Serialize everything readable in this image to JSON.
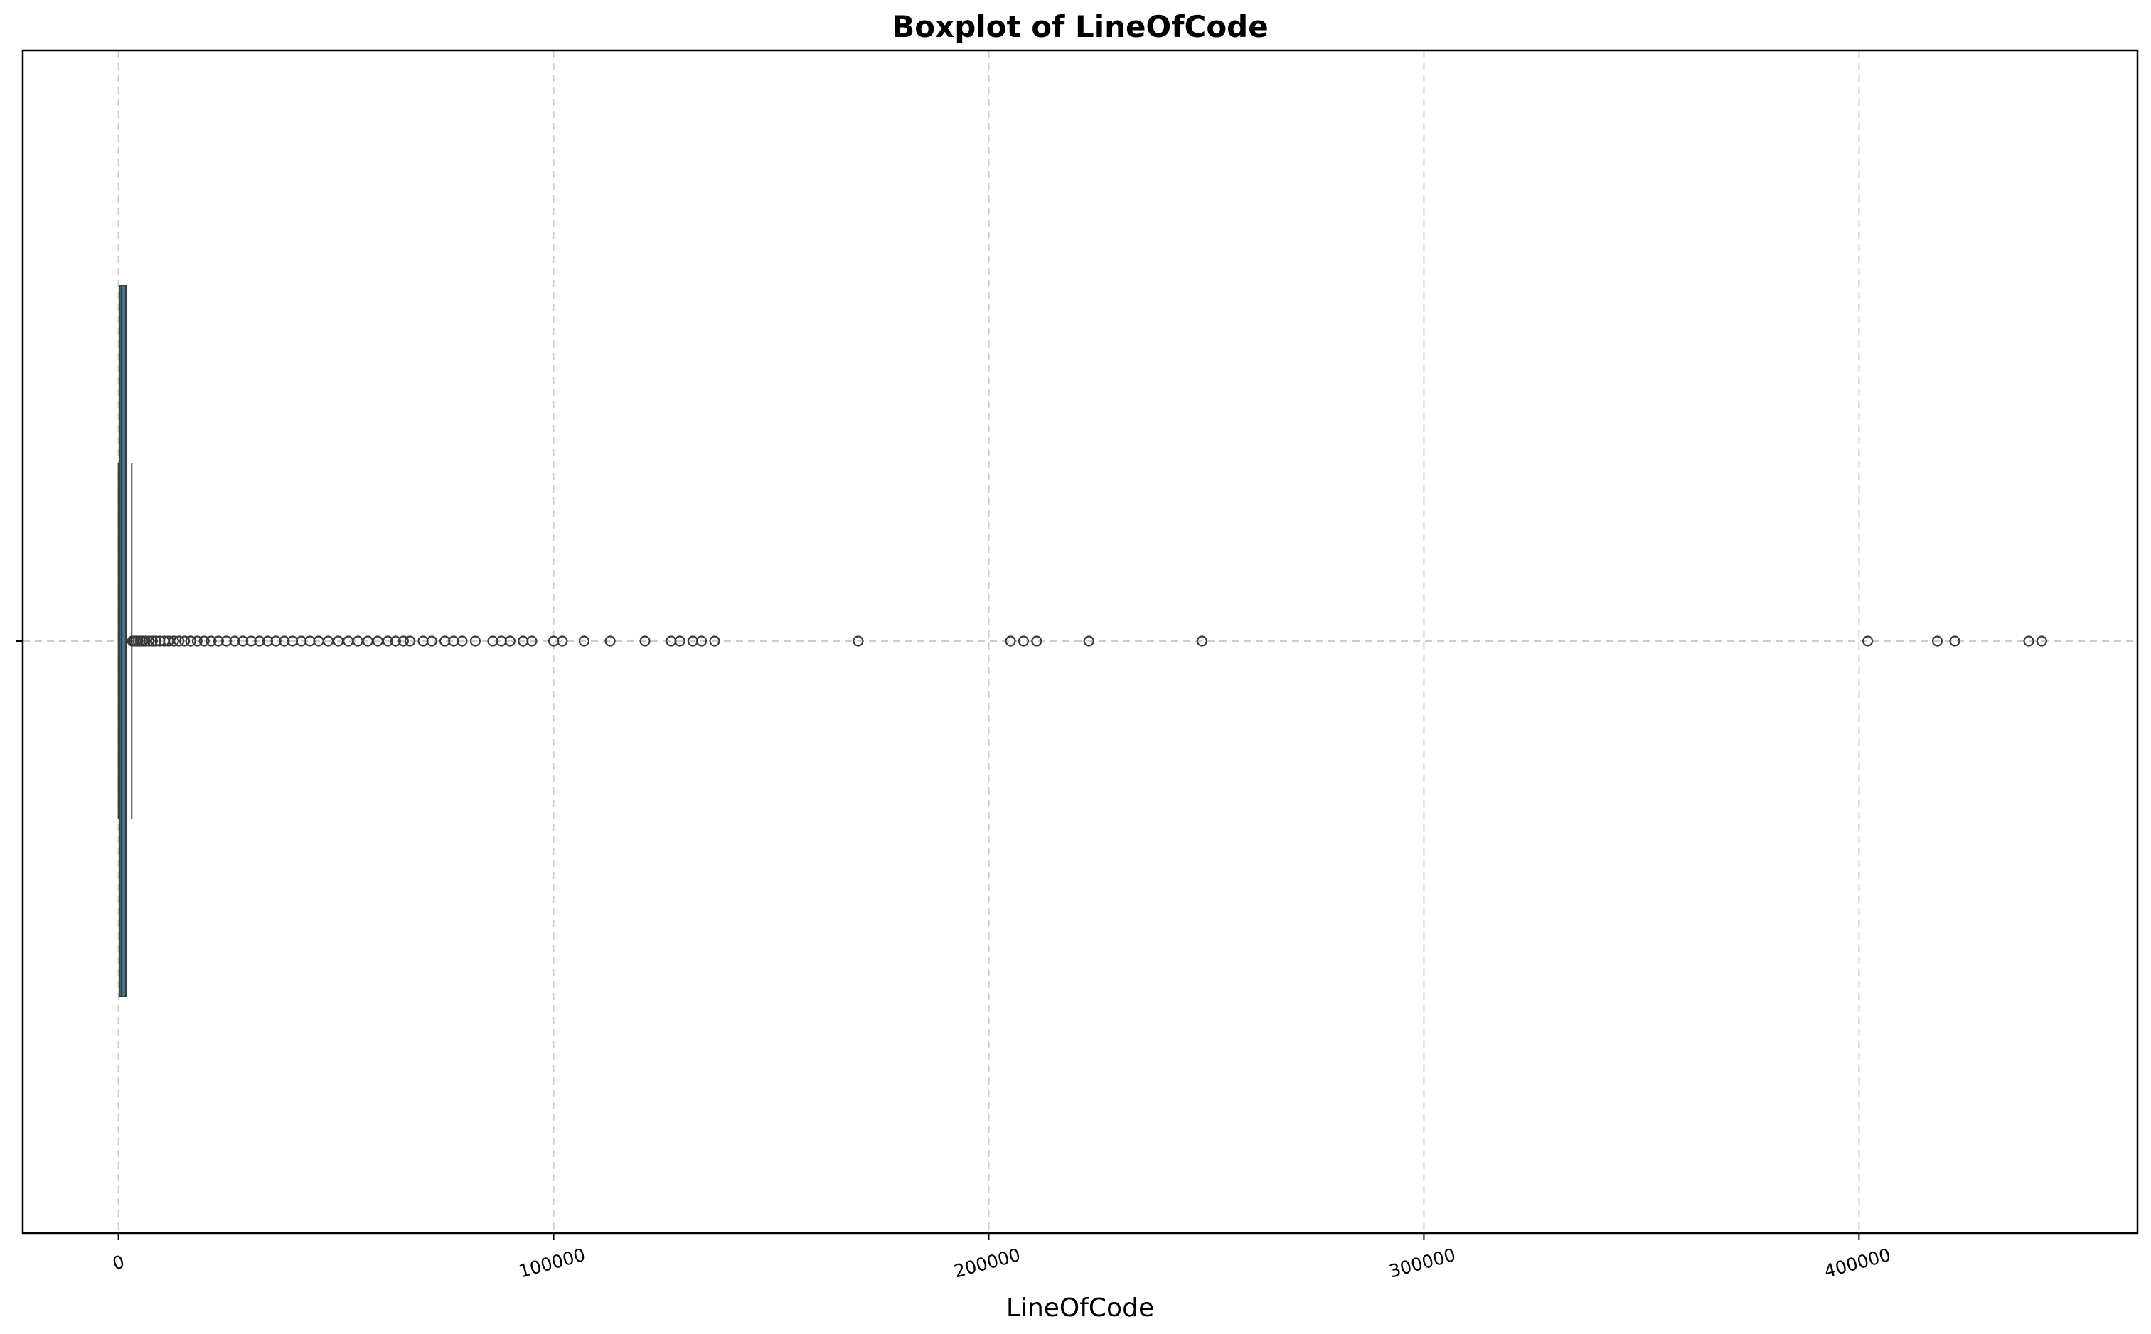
{
  "chart_data": {
    "type": "boxplot",
    "title": "Boxplot of LineOfCode",
    "xlabel": "LineOfCode",
    "ylabel": "",
    "orientation": "horizontal",
    "xlim": [
      -22000,
      464000
    ],
    "x_ticks": [
      0,
      100000,
      200000,
      300000,
      400000
    ],
    "x_tick_labels": [
      "0",
      "100000",
      "200000",
      "300000",
      "400000"
    ],
    "x_tick_rotation_deg": 15,
    "grid": true,
    "box": {
      "whislo": 0,
      "q1": 200,
      "median": 700,
      "q3": 1700,
      "whishi": 3050,
      "color": "#3b7a8c"
    },
    "outliers": [
      3200,
      3600,
      4000,
      4500,
      5000,
      5600,
      6200,
      7000,
      7800,
      8600,
      9500,
      10500,
      11500,
      12700,
      13900,
      15200,
      16600,
      18100,
      19700,
      21300,
      23000,
      24800,
      26700,
      28600,
      30500,
      32400,
      34300,
      36200,
      38100,
      40000,
      42000,
      44000,
      46000,
      48200,
      50500,
      52800,
      55000,
      57300,
      59600,
      61900,
      63700,
      65500,
      67000,
      70000,
      72000,
      75000,
      77000,
      79000,
      82000,
      86000,
      88000,
      90000,
      93000,
      95000,
      100000,
      102000,
      107000,
      113000,
      121000,
      127000,
      129000,
      132000,
      134000,
      137000,
      170000,
      205000,
      208000,
      211000,
      223000,
      249000,
      402000,
      418000,
      422000,
      439000,
      442000
    ]
  }
}
